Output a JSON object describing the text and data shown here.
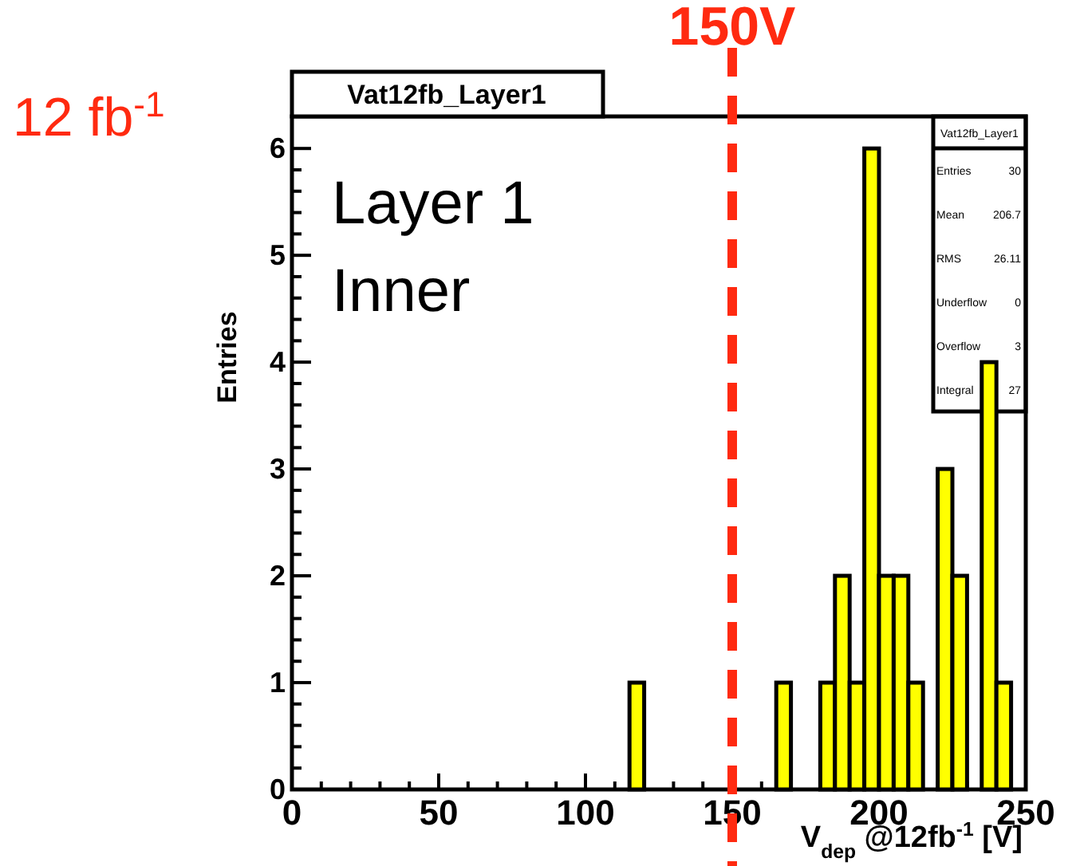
{
  "chart_data": {
    "type": "histogram",
    "title": "Vat12fb_Layer1",
    "xlabel": "V$_{dep}$ @12fb$^{-1}$ [V]",
    "ylabel": "Entries",
    "bins": [
      0,
      5,
      10,
      15,
      20,
      25,
      30,
      35,
      40,
      45,
      50,
      55,
      60,
      65,
      70,
      75,
      80,
      85,
      90,
      95,
      100,
      105,
      110,
      115,
      120,
      125,
      130,
      135,
      140,
      145,
      150,
      155,
      160,
      165,
      170,
      175,
      180,
      185,
      190,
      195,
      200,
      205,
      210,
      215,
      220,
      225,
      230,
      235,
      240,
      245,
      250
    ],
    "values": [
      0,
      0,
      0,
      0,
      0,
      0,
      0,
      0,
      0,
      0,
      0,
      0,
      0,
      0,
      0,
      0,
      0,
      0,
      0,
      0,
      0,
      0,
      0,
      1,
      0,
      0,
      0,
      0,
      0,
      0,
      0,
      0,
      0,
      1,
      0,
      0,
      1,
      2,
      1,
      6,
      2,
      2,
      1,
      0,
      3,
      2,
      0,
      4,
      1,
      0
    ],
    "color": "#ffff00",
    "xlim": [
      0,
      250
    ],
    "xticks": [
      0,
      50,
      100,
      150,
      200,
      250
    ],
    "ylim": [
      0,
      6.3
    ],
    "yticks": [
      0,
      1,
      2,
      3,
      4,
      5,
      6
    ],
    "ref_lines": [
      {
        "axis": "x",
        "value": 150,
        "label": "150V",
        "color": "#ff2a10",
        "line_style": "dashed"
      }
    ],
    "annotations": [
      "12 fb$^{-1}$",
      "Layer 1",
      "Inner",
      "Vat12fb_Layer1",
      "Entries",
      "30",
      "Mean",
      "206.7",
      "RMS",
      "26.11",
      "Underflow",
      "0",
      "Overflow",
      "3",
      "Integral",
      "27"
    ],
    "grid": false
  }
}
